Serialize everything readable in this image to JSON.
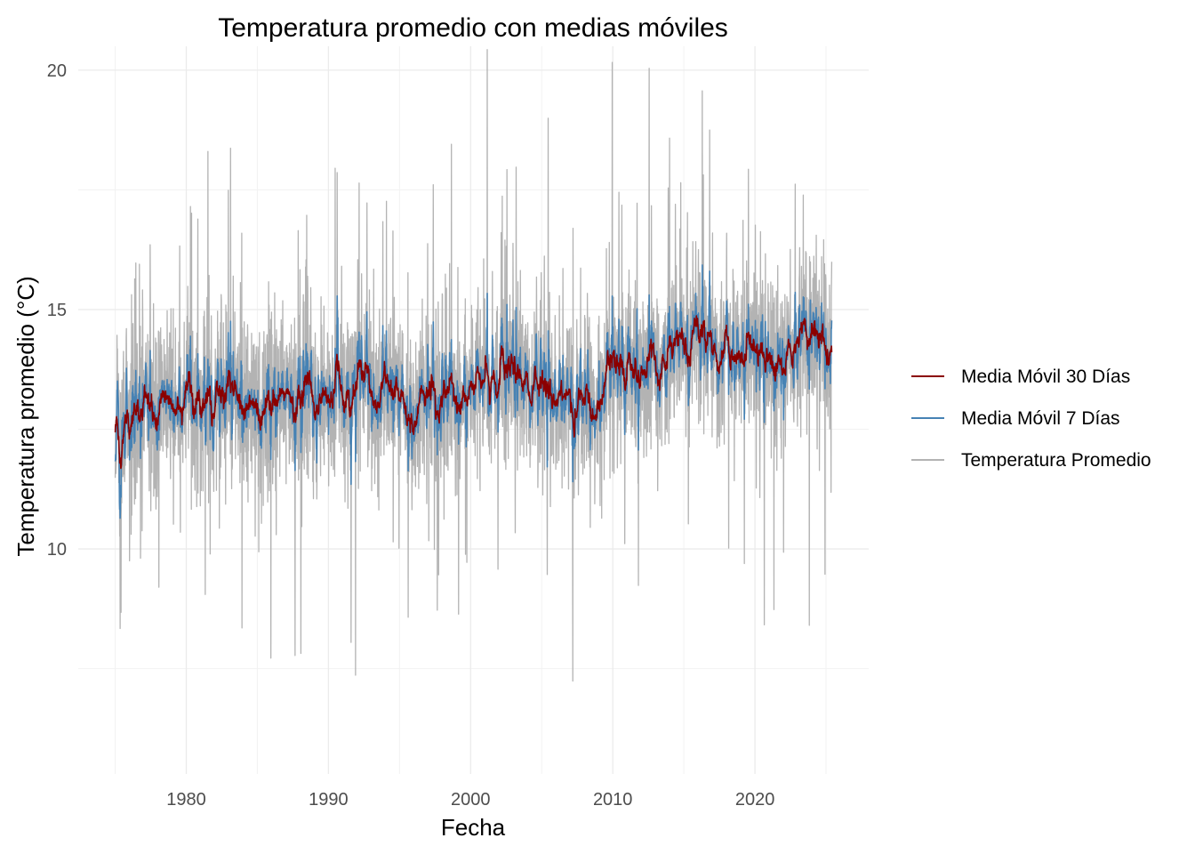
{
  "chart_data": {
    "type": "line",
    "title": "Temperatura promedio con medias móviles",
    "xlabel": "Fecha",
    "ylabel": "Temperatura promedio (°C)",
    "x_range": [
      1975,
      2025.4
    ],
    "xlim": [
      1972.4,
      2028.0
    ],
    "ylim": [
      5.3,
      20.5
    ],
    "x_ticks": [
      1980,
      1990,
      2000,
      2010,
      2020
    ],
    "x_tick_labels": [
      "1980",
      "1990",
      "2000",
      "2010",
      "2020"
    ],
    "y_ticks": [
      10,
      15,
      20
    ],
    "y_tick_labels": [
      "10",
      "15",
      "20"
    ],
    "grid": true,
    "legend_position": "right",
    "series": [
      {
        "name": "Temperatura Promedio",
        "color": "#b3b3b3",
        "role": "daily",
        "spread": 1.0
      },
      {
        "name": "Media Móvil 7 Días",
        "color": "#4682b4",
        "role": "ma7",
        "spread": 0.42
      },
      {
        "name": "Media Móvil 30 Días",
        "color": "#8b0000",
        "role": "ma30",
        "spread": 0.18
      }
    ],
    "baseline": {
      "x": [
        1975,
        1977,
        1979,
        1981,
        1983,
        1985,
        1987,
        1990,
        1992,
        1994,
        1996,
        1998,
        2000,
        2003,
        2005,
        2008,
        2009.4,
        2009.6,
        2012,
        2014,
        2016,
        2018,
        2020,
        2022,
        2024,
        2025.4
      ],
      "y": [
        12.6,
        12.8,
        13.0,
        12.9,
        13.3,
        13.0,
        13.2,
        13.1,
        13.4,
        13.2,
        12.9,
        13.5,
        13.3,
        13.6,
        13.1,
        13.0,
        12.9,
        14.0,
        13.6,
        13.8,
        14.3,
        14.0,
        14.1,
        13.9,
        14.6,
        14.3
      ]
    },
    "legend": [
      {
        "label": "Media Móvil 30 Días",
        "color": "#8b0000"
      },
      {
        "label": "Media Móvil 7 Días",
        "color": "#4682b4"
      },
      {
        "label": "Temperatura Promedio",
        "color": "#b3b3b3"
      }
    ]
  }
}
